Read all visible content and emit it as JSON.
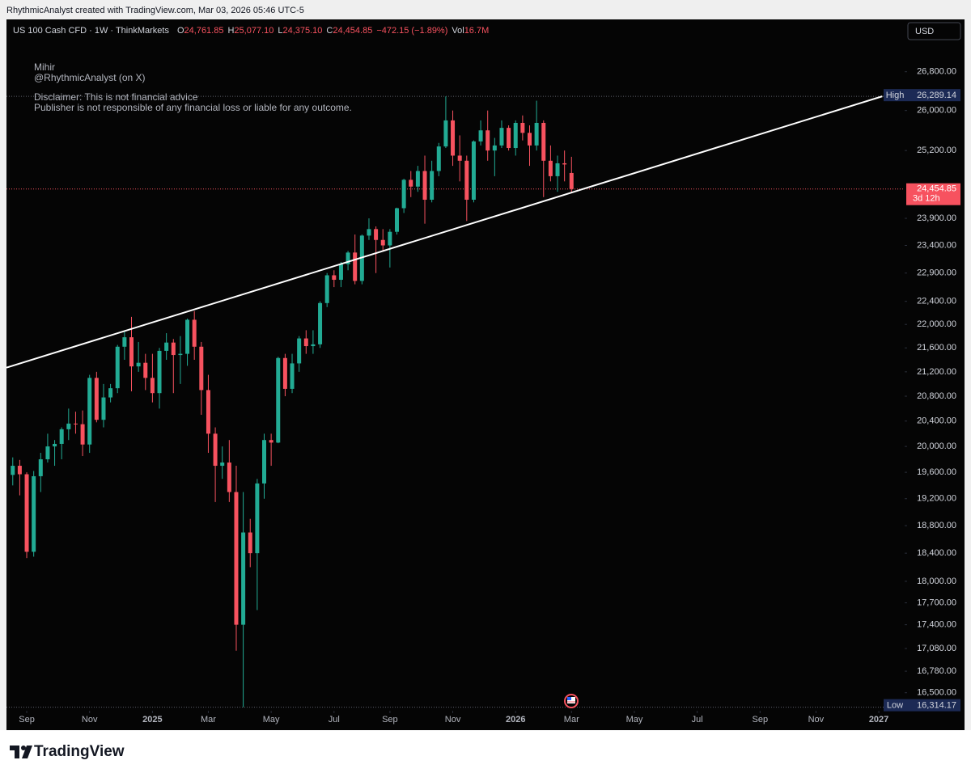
{
  "header": {
    "credit": "RhythmicAnalyst created with TradingView.com, Mar 03, 2026 05:46 UTC-5"
  },
  "footer": {
    "brand": "TradingView"
  },
  "chart_data": {
    "type": "candlestick",
    "symbol": "US 100 Cash CFD · 1W · ThinkMarkets",
    "legend_fields": [
      {
        "key": "O",
        "text": "24,761.85"
      },
      {
        "key": "H",
        "text": "25,077.10"
      },
      {
        "key": "L",
        "text": "24,375.10"
      },
      {
        "key": "C",
        "text": "24,454.85"
      },
      {
        "text": "−472.15 (−1.89%)"
      },
      {
        "key": "Vol",
        "text": "16.7M"
      }
    ],
    "currency": "USD",
    "annotations": [
      "Mihir",
      "@RhythmicAnalyst (on X)",
      "Disclaimer: This is not financial advice",
      "Publisher is not responsible of any financial loss or liable for any outcome."
    ],
    "open": [
      19560,
      19700,
      19570,
      18420,
      19540,
      19800,
      20000,
      20040,
      20270,
      20360,
      20350,
      20030,
      21100,
      20420,
      20780,
      20930,
      21620,
      21780,
      21290,
      21350,
      21100,
      20850,
      21550,
      21690,
      21480,
      21500,
      22080,
      21620,
      20900,
      20200,
      19700,
      19750,
      19300,
      17400,
      18700,
      18400,
      19430,
      20100,
      20060,
      21430,
      20920,
      21340,
      21760,
      21630,
      21660,
      22370,
      22860,
      22780,
      23060,
      23270,
      22760,
      23580,
      23700,
      23500,
      23400,
      23650,
      24090,
      24630,
      24500,
      24800,
      24250,
      24800,
      25280,
      25800,
      25100,
      25000,
      24250,
      25380,
      25600,
      25200,
      25300,
      25650,
      25250,
      25750,
      25550,
      25300,
      25750,
      25000,
      24700,
      24950,
      24761.85
    ],
    "high": [
      19830,
      19790,
      19600,
      19620,
      19900,
      20200,
      20100,
      20300,
      20600,
      20550,
      20570,
      21150,
      21200,
      21000,
      21000,
      21650,
      21900,
      22130,
      21700,
      21500,
      21500,
      21600,
      21850,
      21750,
      21800,
      22100,
      22230,
      21700,
      21150,
      20300,
      20000,
      20100,
      19700,
      19300,
      18900,
      19500,
      20200,
      20200,
      21450,
      21500,
      21500,
      21800,
      21900,
      21900,
      22400,
      22900,
      22950,
      23100,
      23300,
      23600,
      23600,
      23900,
      23750,
      23700,
      23700,
      24100,
      24650,
      24800,
      24900,
      25100,
      25000,
      25350,
      26289.14,
      26000,
      25500,
      25100,
      25400,
      25800,
      26000,
      25450,
      25800,
      25700,
      25800,
      25900,
      25700,
      26200,
      25800,
      25300,
      25100,
      25200,
      25077.1
    ],
    "low": [
      19400,
      19250,
      18330,
      18350,
      19300,
      19750,
      19700,
      19800,
      20100,
      20200,
      19850,
      19900,
      20380,
      20300,
      20700,
      20850,
      21400,
      20880,
      21200,
      20900,
      20700,
      20600,
      21400,
      20850,
      21000,
      21300,
      21400,
      20500,
      19900,
      19150,
      19500,
      19150,
      17050,
      16314.17,
      18200,
      17600,
      19200,
      19700,
      20050,
      20800,
      20850,
      21200,
      21500,
      21500,
      21600,
      22300,
      22650,
      22650,
      22950,
      22700,
      22700,
      23500,
      22900,
      23300,
      23000,
      23600,
      24000,
      24300,
      24400,
      23800,
      24200,
      24700,
      25250,
      24900,
      24600,
      23850,
      24200,
      25300,
      25000,
      24700,
      25250,
      25200,
      25100,
      25400,
      24900,
      25200,
      24300,
      24600,
      24400,
      24600,
      24375.1
    ],
    "close": [
      19700,
      19570,
      18420,
      19540,
      19800,
      20000,
      20040,
      20270,
      20360,
      20350,
      20030,
      21100,
      20420,
      20780,
      20930,
      21620,
      21780,
      21290,
      21350,
      21100,
      20850,
      21550,
      21690,
      21480,
      21500,
      22080,
      21620,
      20900,
      20200,
      19700,
      19750,
      19300,
      17400,
      18700,
      18400,
      19430,
      20100,
      20060,
      21430,
      20920,
      21340,
      21760,
      21630,
      21660,
      22370,
      22860,
      22780,
      23060,
      23270,
      22760,
      23580,
      23700,
      23500,
      23400,
      23650,
      24090,
      24630,
      24500,
      24800,
      24250,
      24800,
      25280,
      25800,
      25100,
      25000,
      24250,
      25380,
      25600,
      25200,
      25300,
      25650,
      25250,
      25750,
      25550,
      25300,
      25750,
      25000,
      24700,
      24950,
      24927,
      24454.85
    ],
    "up_color": "#22ab94",
    "down_color": "#f7525f",
    "log_scale": true,
    "grid": false,
    "xlim": [
      -0.9,
      127.7
    ],
    "xticks": [
      {
        "value": 2,
        "label": "Sep"
      },
      {
        "value": 11,
        "label": "Nov"
      },
      {
        "value": 20,
        "label": "2025"
      },
      {
        "value": 28,
        "label": "Mar"
      },
      {
        "value": 37,
        "label": "May"
      },
      {
        "value": 46,
        "label": "Jul"
      },
      {
        "value": 54,
        "label": "Sep"
      },
      {
        "value": 63,
        "label": "Nov"
      },
      {
        "value": 72,
        "label": "2026"
      },
      {
        "value": 80,
        "label": "Mar"
      },
      {
        "value": 89,
        "label": "May"
      },
      {
        "value": 98,
        "label": "Jul"
      },
      {
        "value": 107,
        "label": "Sep"
      },
      {
        "value": 115,
        "label": "Nov"
      },
      {
        "value": 124,
        "label": "2027"
      }
    ],
    "ylim": [
      16290,
      27900
    ],
    "yticks": [
      {
        "value": 26800,
        "label": "26,800.00"
      },
      {
        "value": 26000,
        "label": "26,000.00"
      },
      {
        "value": 25200,
        "label": "25,200.00"
      },
      {
        "value": 23900,
        "label": "23,900.00"
      },
      {
        "value": 23400,
        "label": "23,400.00"
      },
      {
        "value": 22900,
        "label": "22,900.00"
      },
      {
        "value": 22400,
        "label": "22,400.00"
      },
      {
        "value": 22000,
        "label": "22,000.00"
      },
      {
        "value": 21600,
        "label": "21,600.00"
      },
      {
        "value": 21200,
        "label": "21,200.00"
      },
      {
        "value": 20800,
        "label": "20,800.00"
      },
      {
        "value": 20400,
        "label": "20,400.00"
      },
      {
        "value": 20000,
        "label": "20,000.00"
      },
      {
        "value": 19600,
        "label": "19,600.00"
      },
      {
        "value": 19200,
        "label": "19,200.00"
      },
      {
        "value": 18800,
        "label": "18,800.00"
      },
      {
        "value": 18400,
        "label": "18,400.00"
      },
      {
        "value": 18000,
        "label": "18,000.00"
      },
      {
        "value": 17700,
        "label": "17,700.00"
      },
      {
        "value": 17400,
        "label": "17,400.00"
      },
      {
        "value": 17080,
        "label": "17,080.00"
      },
      {
        "value": 16780,
        "label": "16,780.00"
      },
      {
        "value": 16500,
        "label": "16,500.00"
      }
    ],
    "high_marker": {
      "name": "High",
      "value": 26289.14,
      "label": "26,289.14"
    },
    "low_marker": {
      "name": "Low",
      "value": 16314.17,
      "label": "16,314.17"
    },
    "last_price": {
      "value": 24454.85,
      "label": "24,454.85",
      "countdown": "3d 12h"
    },
    "trendline": {
      "x": [
        -0.9,
        124.5
      ],
      "y": [
        21270,
        26290
      ],
      "color": "#ffffff"
    }
  }
}
